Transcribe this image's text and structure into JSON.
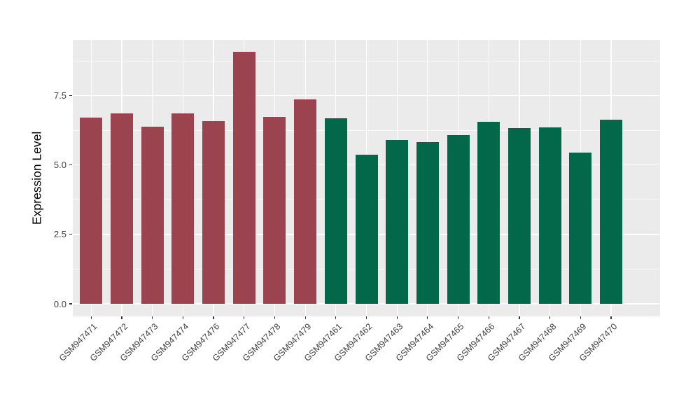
{
  "chart_data": {
    "type": "bar",
    "title": "",
    "xlabel": "",
    "ylabel": "Expression Level",
    "ylim": [
      -0.46,
      9.5
    ],
    "ytick_labels": [
      "0.0",
      "2.5",
      "5.0",
      "7.5"
    ],
    "ytick_values": [
      0,
      2.5,
      5,
      7.5
    ],
    "minor_gridline_values": [
      1.25,
      3.75,
      6.25,
      8.75
    ],
    "grid": "on",
    "legend_position": "none",
    "categories": [
      "GSM947471",
      "GSM947472",
      "GSM947473",
      "GSM947474",
      "GSM947476",
      "GSM947477",
      "GSM947478",
      "GSM947479",
      "GSM947461",
      "GSM947462",
      "GSM947463",
      "GSM947464",
      "GSM947465",
      "GSM947466",
      "GSM947467",
      "GSM947468",
      "GSM947469",
      "GSM947470"
    ],
    "values": [
      6.7,
      6.86,
      6.37,
      6.86,
      6.58,
      9.07,
      6.73,
      7.35,
      6.67,
      5.38,
      5.9,
      5.83,
      6.07,
      6.55,
      6.33,
      6.35,
      5.45,
      6.64
    ],
    "bar_groups": [
      "maroon",
      "maroon",
      "maroon",
      "maroon",
      "maroon",
      "maroon",
      "maroon",
      "maroon",
      "green",
      "green",
      "green",
      "green",
      "green",
      "green",
      "green",
      "green",
      "green",
      "green"
    ],
    "colors": {
      "maroon": "#9B4450",
      "green": "#036849",
      "panel_background": "#EBEBEB",
      "gridline": "#FFFFFF",
      "tick_mark": "#333333",
      "axis_text": "#404040",
      "axis_title": "#000000"
    }
  }
}
